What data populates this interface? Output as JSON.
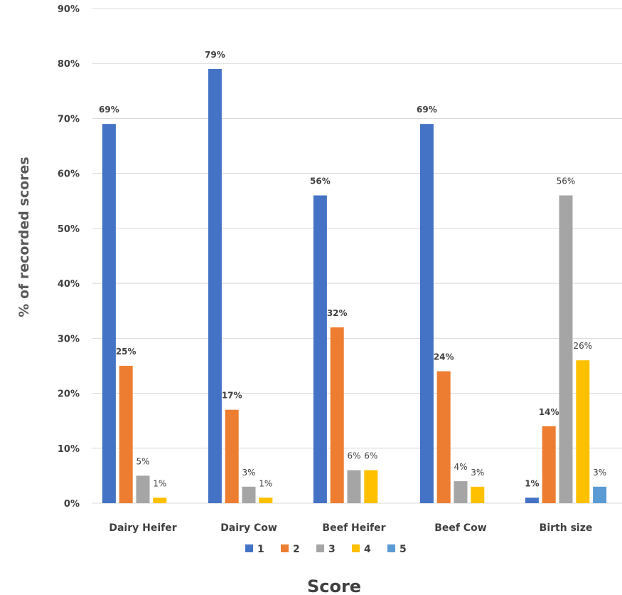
{
  "chart_data": {
    "type": "bar",
    "categories": [
      "Dairy Heifer",
      "Dairy Cow",
      "Beef Heifer",
      "Beef Cow",
      "Birth size"
    ],
    "series": [
      {
        "name": "1",
        "color": "#4472c4",
        "values": [
          69,
          79,
          56,
          69,
          1
        ],
        "labels": [
          "69%",
          "79%",
          "56%",
          "69%",
          "1%"
        ]
      },
      {
        "name": "2",
        "color": "#ed7d31",
        "values": [
          25,
          17,
          32,
          24,
          14
        ],
        "labels": [
          "25%",
          "17%",
          "32%",
          "24%",
          "14%"
        ]
      },
      {
        "name": "3",
        "color": "#a5a5a5",
        "values": [
          5,
          3,
          6,
          4,
          56
        ],
        "labels": [
          "5%",
          "3%",
          "6%",
          "4%",
          "56%"
        ]
      },
      {
        "name": "4",
        "color": "#ffc000",
        "values": [
          1,
          1,
          6,
          3,
          26
        ],
        "labels": [
          "1%",
          "1%",
          "6%",
          "3%",
          "26%"
        ]
      },
      {
        "name": "5",
        "color": "#5b9bd5",
        "values": [
          null,
          null,
          null,
          null,
          3
        ],
        "labels": [
          null,
          null,
          null,
          null,
          "3%"
        ]
      }
    ],
    "xlabel": "Score",
    "ylabel": "% of recorded scores",
    "ylim": [
      0,
      90
    ],
    "yticks": [
      "0%",
      "10%",
      "20%",
      "30%",
      "40%",
      "50%",
      "60%",
      "70%",
      "80%",
      "90%"
    ],
    "grid": true,
    "legend": "bottom"
  }
}
